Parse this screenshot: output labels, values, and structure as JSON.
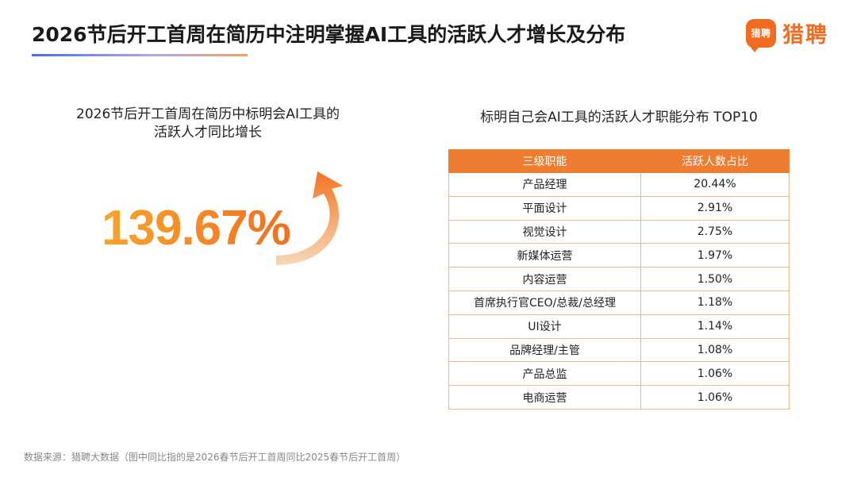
{
  "header": {
    "title": "2026节后开工首周在简历中注明掌握AI工具的活跃人才增长及分布",
    "brand_logo_text": "猎聘",
    "brand_name": "猎聘"
  },
  "left_panel": {
    "subtitle_line1": "2026节后开工首周在简历中标明会AI工具的",
    "subtitle_line2": "活跃人才同比增长",
    "growth_value": "139.67%"
  },
  "right_panel": {
    "title": "标明自己会AI工具的活跃人才职能分布 TOP10"
  },
  "chart_data": {
    "type": "table",
    "columns": [
      "三级职能",
      "活跃人数占比"
    ],
    "rows": [
      [
        "产品经理",
        "20.44%"
      ],
      [
        "平面设计",
        "2.91%"
      ],
      [
        "视觉设计",
        "2.75%"
      ],
      [
        "新媒体运营",
        "1.97%"
      ],
      [
        "内容运营",
        "1.50%"
      ],
      [
        "首席执行官CEO/总裁/总经理",
        "1.18%"
      ],
      [
        "UI设计",
        "1.14%"
      ],
      [
        "品牌经理/主管",
        "1.08%"
      ],
      [
        "产品总监",
        "1.06%"
      ],
      [
        "电商运营",
        "1.06%"
      ]
    ]
  },
  "footer": {
    "source": "数据来源：猎聘大数据（图中同比指的是2026春节后开工首周同比2025春节后开工首周）"
  },
  "colors": {
    "accent": "#f36b21",
    "table_header": "#ed7d31",
    "table_border": "#f2b48c",
    "number_gradient_start": "#f9a52a",
    "number_gradient_end": "#f26f21"
  },
  "icons": {
    "brand": "liepin-logo-icon",
    "growth": "curved-arrow-icon"
  }
}
